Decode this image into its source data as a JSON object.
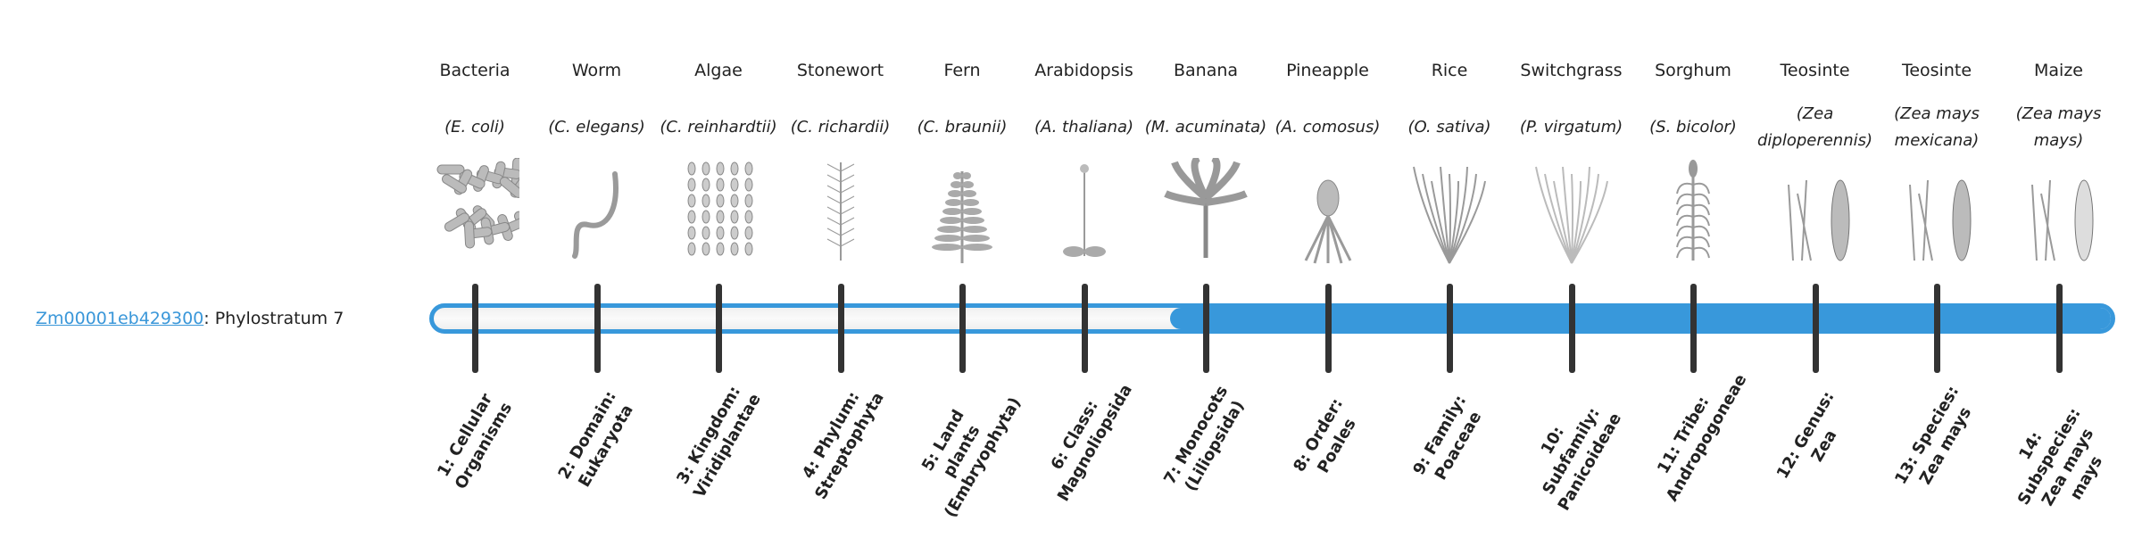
{
  "gene": {
    "id": "Zm00001eb429300",
    "separator": ": ",
    "stratum_label": "Phylostratum 7",
    "phylostratum": 7
  },
  "colors": {
    "accent": "#3898db",
    "tick": "#333333",
    "link": "#3a97d9"
  },
  "strata": [
    {
      "common": "Bacteria",
      "scientific": "(E. coli)",
      "rank": "1: Cellular Organisms",
      "icon": "bacteria-illustration"
    },
    {
      "common": "Worm",
      "scientific": "(C. elegans)",
      "rank": "2: Domain: Eukaryota",
      "icon": "worm-illustration"
    },
    {
      "common": "Algae",
      "scientific": "(C. reinhardtii)",
      "rank": "3: Kingdom: Viridiplantae",
      "icon": "algae-illustration"
    },
    {
      "common": "Stonewort",
      "scientific": "(C. richardii)",
      "rank": "4: Phylum: Streptophyta",
      "icon": "stonewort-illustration"
    },
    {
      "common": "Fern",
      "scientific": "(C. braunii)",
      "rank": "5: Land plants (Embryophyta)",
      "icon": "fern-illustration"
    },
    {
      "common": "Arabidopsis",
      "scientific": "(A. thaliana)",
      "rank": "6: Class: Magnoliopsida",
      "icon": "arabidopsis-illustration"
    },
    {
      "common": "Banana",
      "scientific": "(M. acuminata)",
      "rank": "7: Monocots (Liliopsida)",
      "icon": "banana-illustration"
    },
    {
      "common": "Pineapple",
      "scientific": "(A. comosus)",
      "rank": "8: Order: Poales",
      "icon": "pineapple-illustration"
    },
    {
      "common": "Rice",
      "scientific": "(O. sativa)",
      "rank": "9: Family: Poaceae",
      "icon": "rice-illustration"
    },
    {
      "common": "Switchgrass",
      "scientific": "(P. virgatum)",
      "rank": "10: Subfamily: Panicoideae",
      "icon": "switchgrass-illustration"
    },
    {
      "common": "Sorghum",
      "scientific": "(S. bicolor)",
      "rank": "11: Tribe: Andropogoneae",
      "icon": "sorghum-illustration"
    },
    {
      "common": "Teosinte",
      "scientific": "(Zea diploperennis)",
      "rank": "12: Genus: Zea",
      "icon": "teosinte-illustration"
    },
    {
      "common": "Teosinte",
      "scientific": "(Zea mays mexicana)",
      "rank": "13: Species: Zea mays",
      "icon": "teosinte-mexicana-illustration"
    },
    {
      "common": "Maize",
      "scientific": "(Zea mays mays)",
      "rank": "14: Subspecies: Zea mays mays",
      "icon": "maize-illustration"
    }
  ]
}
